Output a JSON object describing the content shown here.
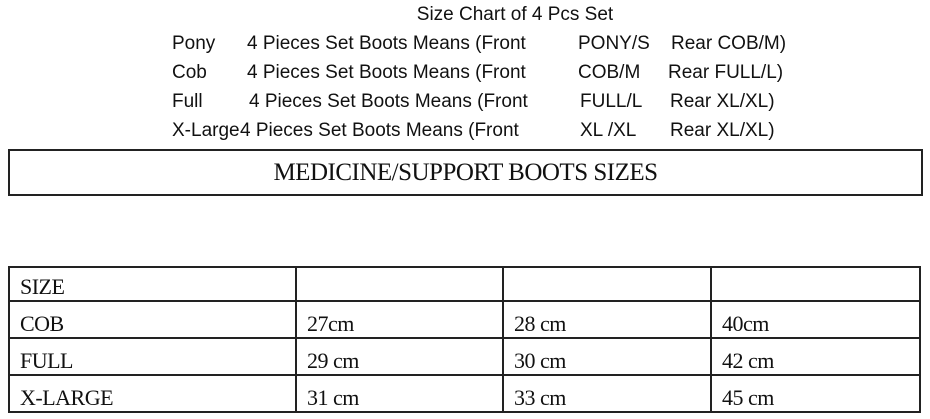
{
  "intro": {
    "title": "Size Chart of 4 Pcs Set",
    "lines": [
      {
        "label": "Pony",
        "desc": "4 Pieces Set Boots Means (Front",
        "front": "PONY/S",
        "rear": "Rear COB/M)"
      },
      {
        "label": "Cob",
        "desc": "4 Pieces Set Boots Means (Front",
        "front": "COB/M",
        "rear": "Rear FULL/L)"
      },
      {
        "label": "Full",
        "desc": "4 Pieces Set Boots Means (Front",
        "front": "FULL/L",
        "rear": "Rear XL/XL)"
      },
      {
        "label": "X-Large",
        "desc": "4 Pieces Set Boots Means (Front",
        "front": "XL /XL",
        "rear": "Rear XL/XL)"
      }
    ]
  },
  "banner": "MEDICINE/SUPPORT BOOTS SIZES",
  "table": {
    "header": [
      "SIZE",
      "",
      "",
      ""
    ],
    "rows": [
      [
        "COB",
        "27cm",
        "28 cm",
        "40cm"
      ],
      [
        "FULL",
        "29 cm",
        "30 cm",
        "42 cm"
      ],
      [
        "X-LARGE",
        "31 cm",
        "33 cm",
        "45 cm"
      ]
    ]
  }
}
